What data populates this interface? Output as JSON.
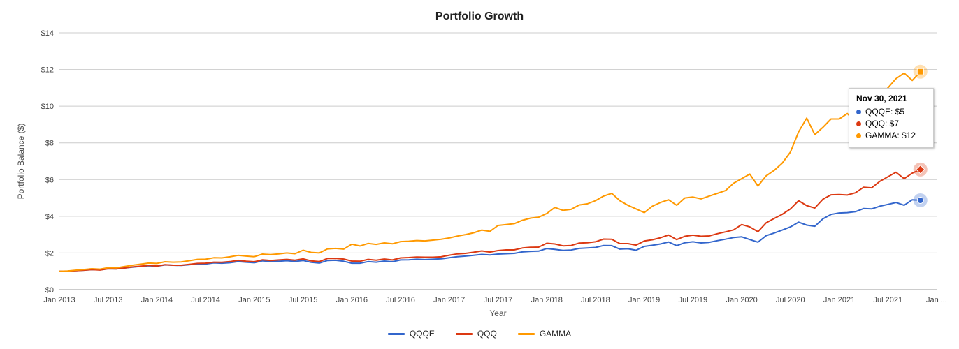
{
  "chart_data": {
    "type": "line",
    "title": "Portfolio Growth",
    "xlabel": "Year",
    "ylabel": "Portfolio Balance ($)",
    "x_start": "Jan 2013",
    "x_end": "Nov 2021",
    "frequency": "monthly",
    "ylim": [
      0,
      14
    ],
    "grid": "horizontal",
    "legend_position": "bottom",
    "y_tick_labels": [
      "$0",
      "$2",
      "$4",
      "$6",
      "$8",
      "$10",
      "$12",
      "$14"
    ],
    "x_tick_labels": [
      "Jan 2013",
      "Jul 2013",
      "Jan 2014",
      "Jul 2014",
      "Jan 2015",
      "Jul 2015",
      "Jan 2016",
      "Jul 2016",
      "Jan 2017",
      "Jul 2017",
      "Jan 2018",
      "Jul 2018",
      "Jan 2019",
      "Jul 2019",
      "Jan 2020",
      "Jul 2020",
      "Jan 2021",
      "Jul 2021",
      "Jan ..."
    ],
    "x_ticks_months_per_step": 6,
    "series": [
      {
        "name": "QQQE",
        "color": "#3366CC",
        "point_shape": "circle",
        "values": [
          1.0,
          1.01,
          1.04,
          1.06,
          1.09,
          1.08,
          1.14,
          1.13,
          1.18,
          1.23,
          1.27,
          1.3,
          1.28,
          1.35,
          1.33,
          1.32,
          1.36,
          1.41,
          1.4,
          1.46,
          1.44,
          1.47,
          1.53,
          1.5,
          1.47,
          1.57,
          1.54,
          1.55,
          1.58,
          1.54,
          1.59,
          1.49,
          1.45,
          1.59,
          1.6,
          1.55,
          1.44,
          1.44,
          1.53,
          1.5,
          1.56,
          1.52,
          1.62,
          1.63,
          1.66,
          1.64,
          1.66,
          1.68,
          1.74,
          1.8,
          1.83,
          1.87,
          1.92,
          1.89,
          1.94,
          1.96,
          1.98,
          2.06,
          2.09,
          2.1,
          2.24,
          2.2,
          2.14,
          2.16,
          2.25,
          2.27,
          2.3,
          2.41,
          2.4,
          2.21,
          2.23,
          2.15,
          2.36,
          2.42,
          2.49,
          2.6,
          2.4,
          2.56,
          2.61,
          2.55,
          2.58,
          2.67,
          2.75,
          2.84,
          2.88,
          2.73,
          2.59,
          2.94,
          3.09,
          3.25,
          3.42,
          3.68,
          3.52,
          3.46,
          3.86,
          4.1,
          4.18,
          4.2,
          4.25,
          4.42,
          4.4,
          4.55,
          4.65,
          4.75,
          4.6,
          4.9,
          4.87
        ]
      },
      {
        "name": "QQQ",
        "color": "#DC3912",
        "point_shape": "diamond",
        "values": [
          1.0,
          1.01,
          1.04,
          1.06,
          1.09,
          1.07,
          1.14,
          1.13,
          1.18,
          1.24,
          1.28,
          1.32,
          1.29,
          1.36,
          1.33,
          1.33,
          1.38,
          1.43,
          1.44,
          1.5,
          1.49,
          1.53,
          1.6,
          1.55,
          1.52,
          1.63,
          1.59,
          1.62,
          1.65,
          1.61,
          1.68,
          1.57,
          1.53,
          1.7,
          1.71,
          1.67,
          1.56,
          1.55,
          1.65,
          1.61,
          1.67,
          1.62,
          1.73,
          1.75,
          1.78,
          1.77,
          1.77,
          1.79,
          1.88,
          1.95,
          1.98,
          2.04,
          2.11,
          2.05,
          2.13,
          2.17,
          2.17,
          2.27,
          2.31,
          2.32,
          2.53,
          2.49,
          2.39,
          2.41,
          2.54,
          2.56,
          2.61,
          2.76,
          2.75,
          2.51,
          2.51,
          2.43,
          2.65,
          2.72,
          2.83,
          2.98,
          2.73,
          2.91,
          2.97,
          2.91,
          2.93,
          3.05,
          3.15,
          3.26,
          3.55,
          3.42,
          3.16,
          3.64,
          3.88,
          4.11,
          4.4,
          4.85,
          4.58,
          4.45,
          4.93,
          5.17,
          5.18,
          5.16,
          5.28,
          5.58,
          5.55,
          5.9,
          6.15,
          6.4,
          6.05,
          6.35,
          6.55
        ]
      },
      {
        "name": "GAMMA",
        "color": "#FF9900",
        "point_shape": "square",
        "values": [
          1.0,
          1.02,
          1.06,
          1.1,
          1.14,
          1.12,
          1.2,
          1.19,
          1.26,
          1.33,
          1.39,
          1.45,
          1.43,
          1.52,
          1.5,
          1.51,
          1.58,
          1.65,
          1.66,
          1.74,
          1.73,
          1.79,
          1.87,
          1.83,
          1.8,
          1.94,
          1.91,
          1.95,
          2.0,
          1.96,
          2.15,
          2.03,
          2.0,
          2.22,
          2.25,
          2.21,
          2.48,
          2.38,
          2.52,
          2.47,
          2.55,
          2.5,
          2.62,
          2.64,
          2.68,
          2.66,
          2.7,
          2.75,
          2.82,
          2.92,
          3.0,
          3.1,
          3.25,
          3.18,
          3.5,
          3.55,
          3.6,
          3.78,
          3.9,
          3.95,
          4.15,
          4.48,
          4.32,
          4.38,
          4.62,
          4.68,
          4.85,
          5.1,
          5.25,
          4.85,
          4.6,
          4.4,
          4.2,
          4.55,
          4.75,
          4.9,
          4.6,
          5.0,
          5.05,
          4.95,
          5.1,
          5.25,
          5.4,
          5.8,
          6.05,
          6.3,
          5.65,
          6.2,
          6.5,
          6.9,
          7.5,
          8.6,
          9.35,
          8.45,
          8.85,
          9.3,
          9.3,
          9.6,
          9.15,
          9.9,
          9.7,
          10.4,
          11.0,
          11.5,
          11.8,
          11.4,
          11.88
        ]
      }
    ]
  },
  "tooltip": {
    "title": "Nov 30, 2021",
    "rows": [
      {
        "label": "QQQE: $5",
        "color": "#3366CC"
      },
      {
        "label": "QQQ: $7",
        "color": "#DC3912"
      },
      {
        "label": "GAMMA: $12",
        "color": "#FF9900"
      }
    ]
  },
  "style": {
    "gridline_color": "#cccccc",
    "baseline_color": "#999999",
    "tick_text_color": "#444444"
  }
}
